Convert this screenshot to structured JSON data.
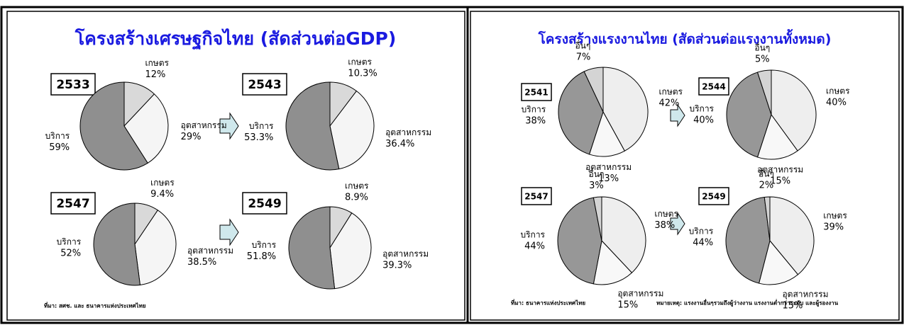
{
  "panels": [
    {
      "title": "โครงสร้างเศรษฐกิจไทย (สัดส่วนต่อGDP)",
      "source": "ที่มา: สศช. และ ธนาคารแห่งประเทศไทย"
    },
    {
      "title": "โครงสร้างแรงงานไทย (สัดส่วนต่อแรงงานทั้งหมด)",
      "source": "ที่มา: ธนาคารแห่งประเทศไทย",
      "note": "หมายเหตุ: แรงงานอื่นๆรวมถึงผู้ว่างงาน แรงงานต่ำกว่าระดับ และผู้รองงาน"
    }
  ],
  "chart_data": [
    {
      "type": "pie",
      "title": "2533",
      "categories": [
        "เกษตร",
        "อุตสาหกรรม",
        "บริการ"
      ],
      "values": [
        12,
        29,
        59
      ],
      "value_labels": [
        "12%",
        "29%",
        "59%"
      ],
      "colors": [
        "#d9d9d9",
        "#f5f5f5",
        "#8f8f8f"
      ]
    },
    {
      "type": "pie",
      "title": "2543",
      "categories": [
        "เกษตร",
        "อุตสาหกรรม",
        "บริการ"
      ],
      "values": [
        10.3,
        36.4,
        53.3
      ],
      "value_labels": [
        "10.3%",
        "36.4%",
        "53.3%"
      ],
      "colors": [
        "#d9d9d9",
        "#f5f5f5",
        "#8f8f8f"
      ]
    },
    {
      "type": "pie",
      "title": "2547",
      "categories": [
        "เกษตร",
        "อุตสาหกรรม",
        "บริการ"
      ],
      "values": [
        9.4,
        38.5,
        52
      ],
      "value_labels": [
        "9.4%",
        "38.5%",
        "52%"
      ],
      "colors": [
        "#d9d9d9",
        "#f5f5f5",
        "#8f8f8f"
      ]
    },
    {
      "type": "pie",
      "title": "2549",
      "categories": [
        "เกษตร",
        "อุตสาหกรรม",
        "บริการ"
      ],
      "values": [
        8.9,
        39.3,
        51.8
      ],
      "value_labels": [
        "8.9%",
        "39.3%",
        "51.8%"
      ],
      "colors": [
        "#d9d9d9",
        "#f5f5f5",
        "#8f8f8f"
      ]
    },
    {
      "type": "pie",
      "title": "2541",
      "categories": [
        "เกษตร",
        "อุตสาหกรรม",
        "บริการ",
        "อื่นๆ"
      ],
      "values": [
        42,
        13,
        38,
        7
      ],
      "value_labels": [
        "42%",
        "13%",
        "38%",
        "7%"
      ],
      "colors": [
        "#eeeeee",
        "#f8f8f8",
        "#979797",
        "#d4d4d4"
      ]
    },
    {
      "type": "pie",
      "title": "2544",
      "categories": [
        "เกษตร",
        "อุตสาหกรรม",
        "บริการ",
        "อื่นๆ"
      ],
      "values": [
        40,
        15,
        40,
        5
      ],
      "value_labels": [
        "40%",
        "15%",
        "40%",
        "5%"
      ],
      "colors": [
        "#eeeeee",
        "#f8f8f8",
        "#979797",
        "#d4d4d4"
      ]
    },
    {
      "type": "pie",
      "title": "2547",
      "categories": [
        "เกษตร",
        "อุตสาหกรรม",
        "บริการ",
        "อื่นๆ"
      ],
      "values": [
        38,
        15,
        44,
        3
      ],
      "value_labels": [
        "38%",
        "15%",
        "44%",
        "3%"
      ],
      "colors": [
        "#eeeeee",
        "#f8f8f8",
        "#979797",
        "#d4d4d4"
      ]
    },
    {
      "type": "pie",
      "title": "2549",
      "categories": [
        "เกษตร",
        "อุตสาหกรรม",
        "บริการ",
        "อื่นๆ"
      ],
      "values": [
        39,
        15,
        44,
        2
      ],
      "value_labels": [
        "39%",
        "15%",
        "44%",
        "2%"
      ],
      "colors": [
        "#eeeeee",
        "#f8f8f8",
        "#979797",
        "#d4d4d4"
      ]
    }
  ]
}
